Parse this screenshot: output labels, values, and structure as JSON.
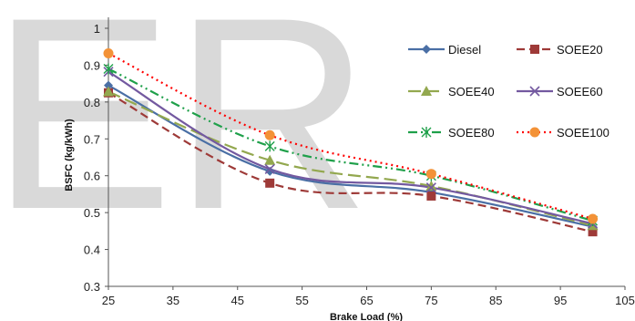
{
  "watermark": {
    "text": "ER",
    "color": "#d9d9d9"
  },
  "chart_data": {
    "type": "line",
    "xlabel": "Brake Load (%)",
    "ylabel": "BSFC (kg/kWh)",
    "xlim": [
      25,
      105
    ],
    "ylim": [
      0.3,
      1.0
    ],
    "x_ticks": [
      "25",
      "35",
      "45",
      "55",
      "65",
      "75",
      "85",
      "95",
      "105"
    ],
    "y_ticks": [
      "0.3",
      "0.4",
      "0.5",
      "0.6",
      "0.7",
      "0.8",
      "0.9",
      "1"
    ],
    "grid": false,
    "legend_position": "right",
    "x": [
      25,
      50,
      75,
      100
    ],
    "series": [
      {
        "name": "Diesel",
        "values": [
          0.845,
          0.612,
          0.555,
          0.462
        ],
        "color": "#4a6fa5",
        "marker": "diamond",
        "dash": "solid"
      },
      {
        "name": "SOEE20",
        "values": [
          0.825,
          0.58,
          0.545,
          0.448
        ],
        "color": "#9e3a38",
        "marker": "square",
        "dash": "dash"
      },
      {
        "name": "SOEE40",
        "values": [
          0.828,
          0.642,
          0.572,
          0.465
        ],
        "color": "#93a84f",
        "marker": "triangle",
        "dash": "longdash"
      },
      {
        "name": "SOEE60",
        "values": [
          0.882,
          0.618,
          0.568,
          0.47
        ],
        "color": "#7359a0",
        "marker": "x",
        "dash": "solid"
      },
      {
        "name": "SOEE80",
        "values": [
          0.89,
          0.68,
          0.6,
          0.478
        ],
        "color": "#1fa04a",
        "marker": "star",
        "dash": "dashdotdot"
      },
      {
        "name": "SOEE100",
        "values": [
          0.932,
          0.71,
          0.605,
          0.483
        ],
        "color": "#ff0000",
        "marker": "circle",
        "dash": "dot",
        "marker_color": "#f39237"
      }
    ]
  }
}
